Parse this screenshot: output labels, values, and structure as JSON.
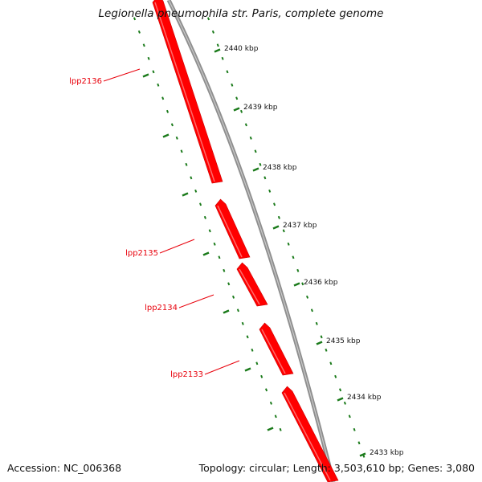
{
  "title": "Legionella pneumophila str. Paris, complete genome",
  "footer": {
    "accession": "Accession: NC_006368",
    "summary": "Topology: circular; Length: 3,503,610 bp; Genes: 3,080"
  },
  "colors": {
    "gene": "#ff0000",
    "backbone": "#8c8c8c",
    "tick": "#1a7a1a",
    "label": "#e8000b"
  },
  "ruler": [
    {
      "label": "2440 kbp"
    },
    {
      "label": "2439 kbp"
    },
    {
      "label": "2438 kbp"
    },
    {
      "label": "2437 kbp"
    },
    {
      "label": "2436 kbp"
    },
    {
      "label": "2435 kbp"
    },
    {
      "label": "2434 kbp"
    },
    {
      "label": "2433 kbp"
    }
  ],
  "genes": [
    {
      "name": "lpp2136",
      "strand": "reverse"
    },
    {
      "name": "lpp2135",
      "strand": "reverse"
    },
    {
      "name": "lpp2134",
      "strand": "reverse"
    },
    {
      "name": "lpp2133",
      "strand": "reverse"
    }
  ]
}
